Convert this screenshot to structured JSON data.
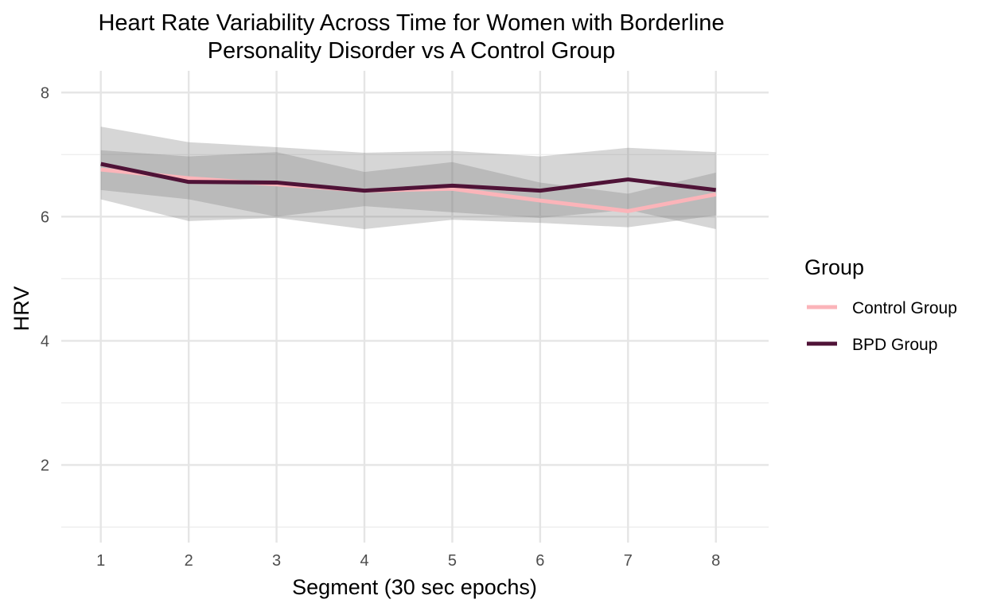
{
  "chart_data": {
    "type": "line",
    "title_lines": [
      "Heart Rate Variability Across Time for Women with Borderline",
      "Personality Disorder vs A Control Group"
    ],
    "xlabel": "Segment (30 sec epochs)",
    "ylabel": "HRV",
    "x": [
      1,
      2,
      3,
      4,
      5,
      6,
      7,
      8
    ],
    "xlim": [
      0.55,
      8.6
    ],
    "ylim": [
      0.75,
      8.35
    ],
    "y_major_ticks": [
      2,
      4,
      6,
      8
    ],
    "y_minor_gridlines": [
      1,
      3,
      5,
      7
    ],
    "grid": true,
    "legend": {
      "title": "Group",
      "placement": "right"
    },
    "series": [
      {
        "name": "Control Group",
        "color": "#fbb4b9",
        "values": [
          6.76,
          6.62,
          6.52,
          6.42,
          6.45,
          6.26,
          6.09,
          6.36
        ],
        "ribbon_low": [
          6.28,
          5.93,
          5.98,
          5.8,
          5.95,
          5.9,
          5.83,
          6.02
        ],
        "ribbon_high": [
          7.45,
          7.2,
          7.12,
          7.03,
          7.06,
          6.97,
          7.11,
          7.04
        ]
      },
      {
        "name": "BPD Group",
        "color": "#4f1337",
        "values": [
          6.85,
          6.56,
          6.55,
          6.42,
          6.5,
          6.42,
          6.6,
          6.43
        ],
        "ribbon_low": [
          6.43,
          6.28,
          6.0,
          6.17,
          6.07,
          5.98,
          6.11,
          5.8
        ],
        "ribbon_high": [
          7.07,
          6.97,
          7.04,
          6.72,
          6.88,
          6.55,
          6.37,
          6.71
        ]
      }
    ]
  }
}
